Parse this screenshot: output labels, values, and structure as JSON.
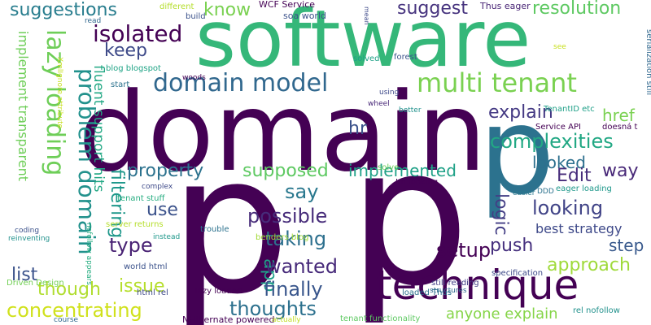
{
  "words": [
    {
      "text": "software",
      "color": "#35b779"
    },
    {
      "text": "domain",
      "color": "#440154"
    },
    {
      "text": "p",
      "color": "#440154"
    },
    {
      "text": "p",
      "color": "#440154"
    },
    {
      "text": "p",
      "color": "#2c728e"
    },
    {
      "text": "technique",
      "color": "#440154"
    },
    {
      "text": "multi tenant",
      "color": "#7ad151"
    },
    {
      "text": "domain model",
      "color": "#31688e"
    },
    {
      "text": "lazy loading",
      "color": "#6ece58"
    },
    {
      "text": "problem domain",
      "color": "#21918c"
    },
    {
      "text": "isolated",
      "color": "#440154"
    },
    {
      "text": "suggestions",
      "color": "#287d8e"
    },
    {
      "text": "keep",
      "color": "#3e4a89"
    },
    {
      "text": "know",
      "color": "#7ad151"
    },
    {
      "text": "suggest",
      "color": "#46337e"
    },
    {
      "text": "resolution",
      "color": "#5ec962"
    },
    {
      "text": "explain",
      "color": "#443983"
    },
    {
      "text": "href",
      "color": "#7ad151"
    },
    {
      "text": "complexities",
      "color": "#22a884"
    },
    {
      "text": "hr",
      "color": "#3b528b"
    },
    {
      "text": "looked",
      "color": "#2d708e"
    },
    {
      "text": "way",
      "color": "#482878"
    },
    {
      "text": "Edit",
      "color": "#472d7b"
    },
    {
      "text": "property",
      "color": "#2c728e"
    },
    {
      "text": "supposed",
      "color": "#5ec962"
    },
    {
      "text": "implemented",
      "color": "#1fa187"
    },
    {
      "text": "logic",
      "color": "#433e85"
    },
    {
      "text": "looking",
      "color": "#414487"
    },
    {
      "text": "say",
      "color": "#2a788e"
    },
    {
      "text": "possible",
      "color": "#472c7a"
    },
    {
      "text": "use",
      "color": "#3b528b"
    },
    {
      "text": "taking",
      "color": "#2d708e"
    },
    {
      "text": "type",
      "color": "#482173"
    },
    {
      "text": "filtering",
      "color": "#1f988b"
    },
    {
      "text": "best strategy",
      "color": "#3e4989"
    },
    {
      "text": "push",
      "color": "#46307e"
    },
    {
      "text": "step",
      "color": "#38598c"
    },
    {
      "text": "setup",
      "color": "#440154"
    },
    {
      "text": "approach",
      "color": "#9fda3a"
    },
    {
      "text": "app",
      "color": "#1fa088"
    },
    {
      "text": "wanted",
      "color": "#472a7a"
    },
    {
      "text": "finally",
      "color": "#39568c"
    },
    {
      "text": "thoughts",
      "color": "#2d718e"
    },
    {
      "text": "issue",
      "color": "#b5de2b"
    },
    {
      "text": "list",
      "color": "#3b528b"
    },
    {
      "text": "though",
      "color": "#b0dd2f"
    },
    {
      "text": "concentrating",
      "color": "#d0e11c"
    },
    {
      "text": "anyone explain",
      "color": "#86d549"
    },
    {
      "text": "implement transparent",
      "color": "#6ece58"
    },
    {
      "text": "fluent support hits",
      "color": "#22a884"
    },
    {
      "text": "WCF Service",
      "color": "#440154"
    },
    {
      "text": "soa world",
      "color": "#3b528b"
    },
    {
      "text": "Thus eager",
      "color": "#482475"
    },
    {
      "text": "mean",
      "color": "#3e4a89"
    },
    {
      "text": "different",
      "color": "#b5de2b"
    },
    {
      "text": "build",
      "color": "#3b528b"
    },
    {
      "text": "read",
      "color": "#31688e"
    },
    {
      "text": "solved",
      "color": "#1fa187"
    },
    {
      "text": "forest",
      "color": "#3b528b"
    },
    {
      "text": "blog blogspot",
      "color": "#20a486"
    },
    {
      "text": "woods",
      "color": "#440154"
    },
    {
      "text": "start",
      "color": "#2c728e"
    },
    {
      "text": "using",
      "color": "#3e4989"
    },
    {
      "text": "wheel",
      "color": "#482878"
    },
    {
      "text": "better",
      "color": "#21918c"
    },
    {
      "text": "Service API",
      "color": "#440154"
    },
    {
      "text": "TenantID etc",
      "color": "#1fa088"
    },
    {
      "text": "doesná t",
      "color": "#440154"
    },
    {
      "text": "see",
      "color": "#c8e020"
    },
    {
      "text": "serialization still",
      "color": "#31688e"
    },
    {
      "text": "solve",
      "color": "#6ece58"
    },
    {
      "text": "Im looking",
      "color": "#440154"
    },
    {
      "text": "DDD",
      "color": "#2c728e"
    },
    {
      "text": "eager loading",
      "color": "#1f988b"
    },
    {
      "text": "easier",
      "color": "#2a788e"
    },
    {
      "text": "complex",
      "color": "#3e4a89"
    },
    {
      "text": "tenant stuff",
      "color": "#27ad81"
    },
    {
      "text": "coding",
      "color": "#3b528b"
    },
    {
      "text": "reinventing",
      "color": "#21918c"
    },
    {
      "text": "server returns",
      "color": "#b5de2b"
    },
    {
      "text": "trouble",
      "color": "#2c728e"
    },
    {
      "text": "instead",
      "color": "#1f988b"
    },
    {
      "text": "benders blog",
      "color": "#a2da37"
    },
    {
      "text": "still reading",
      "color": "#433e85"
    },
    {
      "text": "structures",
      "color": "#31688e"
    },
    {
      "text": "specification",
      "color": "#3e4a89"
    },
    {
      "text": "world html",
      "color": "#3b528b"
    },
    {
      "text": "html rel",
      "color": "#3e4989"
    },
    {
      "text": "lazy loaded",
      "color": "#440154"
    },
    {
      "text": "loaded Thus",
      "color": "#2d708e"
    },
    {
      "text": "rel nofollow",
      "color": "#21918c"
    },
    {
      "text": "NHibernate powered",
      "color": "#440154"
    },
    {
      "text": "actually",
      "color": "#c2df23"
    },
    {
      "text": "tenant functionality",
      "color": "#5ec962"
    },
    {
      "text": "course",
      "color": "#31688e"
    },
    {
      "text": "Driven Design",
      "color": "#73d056"
    },
    {
      "text": "nofollow appears",
      "color": "#27ad81"
    },
    {
      "text": "XmlIgnore attribute",
      "color": "#c8e020"
    }
  ]
}
